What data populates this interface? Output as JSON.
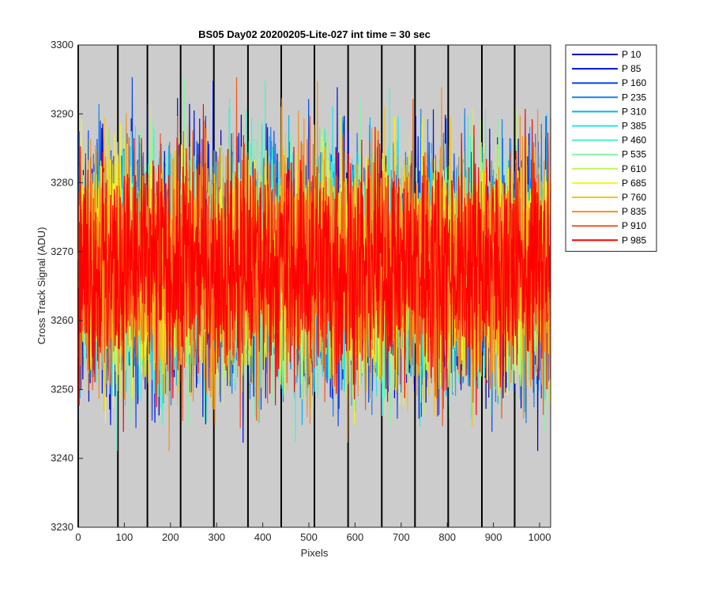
{
  "chart_data": {
    "type": "line",
    "title": "BS05 Day02 20200205-Lite-027 int time = 30 sec",
    "xlabel": "Pixels",
    "ylabel": "Cross Track Signal (ADU)",
    "xlim": [
      0,
      1024
    ],
    "ylim": [
      3230,
      3300
    ],
    "xticks": [
      "0",
      "100",
      "200",
      "300",
      "400",
      "500",
      "600",
      "700",
      "800",
      "900",
      "1000"
    ],
    "yticks": [
      "3230",
      "3240",
      "3250",
      "3260",
      "3270",
      "3280",
      "3290",
      "3300"
    ],
    "x_tick_values": [
      0,
      100,
      200,
      300,
      400,
      500,
      600,
      700,
      800,
      900,
      1000
    ],
    "y_tick_values": [
      3230,
      3240,
      3250,
      3260,
      3270,
      3280,
      3290,
      3300
    ],
    "vertical_lines_x": [
      0,
      86,
      150,
      222,
      294,
      368,
      440,
      512,
      585,
      658,
      730,
      802,
      875,
      946
    ],
    "background": "#cccccc",
    "legend_position": "outside-right-top",
    "noise": {
      "mean": 3268,
      "min": 3236,
      "max": 3298,
      "points": 1024
    },
    "series": [
      {
        "name": "P 10",
        "color": "#0000be"
      },
      {
        "name": "P 85",
        "color": "#0012e6"
      },
      {
        "name": "P 160",
        "color": "#0a46ee"
      },
      {
        "name": "P 235",
        "color": "#1480ee"
      },
      {
        "name": "P 310",
        "color": "#0ab4f0"
      },
      {
        "name": "P 385",
        "color": "#22e6ee"
      },
      {
        "name": "P 460",
        "color": "#46f5c8"
      },
      {
        "name": "P 535",
        "color": "#82f7a0"
      },
      {
        "name": "P 610",
        "color": "#c0f552"
      },
      {
        "name": "P 685",
        "color": "#f5f51e"
      },
      {
        "name": "P 760",
        "color": "#f7c314"
      },
      {
        "name": "P 835",
        "color": "#f7901a"
      },
      {
        "name": "P 910",
        "color": "#f5561e"
      },
      {
        "name": "P 985",
        "color": "#ff0000"
      }
    ]
  }
}
